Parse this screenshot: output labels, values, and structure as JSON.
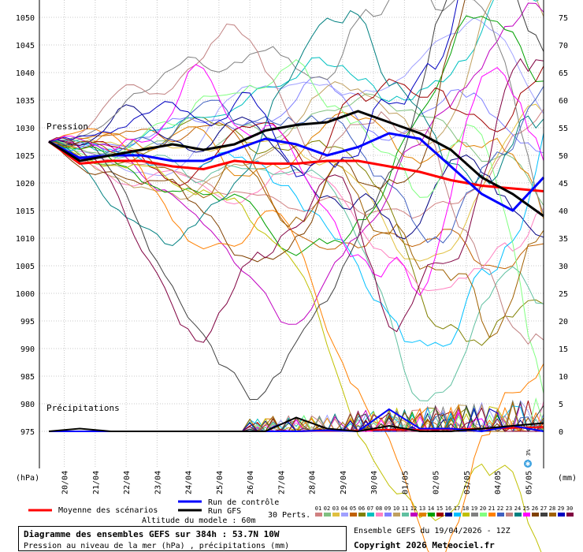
{
  "chart_data": {
    "type": "line",
    "pressure_label": "Pression",
    "precip_label": "Précipitations",
    "left_axis_unit": "(hPa)",
    "right_axis_unit": "(mm)",
    "left_ticks": [
      1050,
      1045,
      1040,
      1035,
      1030,
      1025,
      1020,
      1015,
      1010,
      1005,
      1000,
      995,
      990,
      985,
      980,
      975
    ],
    "right_ticks": [
      75,
      70,
      65,
      60,
      55,
      50,
      45,
      40,
      35,
      30,
      25,
      20,
      15,
      10,
      5,
      0
    ],
    "ylim_pressure": [
      970,
      1052
    ],
    "ylim_precip": [
      -5,
      77
    ],
    "x_dates": [
      "20/04",
      "21/04",
      "22/04",
      "23/04",
      "24/04",
      "25/04",
      "26/04",
      "27/04",
      "28/04",
      "29/04",
      "30/04",
      "01/05",
      "02/05",
      "03/05",
      "04/05",
      "05/05"
    ],
    "x_range_hours": [
      0,
      384
    ],
    "series": [
      {
        "name": "Moyenne des scénarios",
        "color": "#ff0000",
        "hours": [
          0,
          24,
          48,
          72,
          96,
          120,
          144,
          168,
          192,
          216,
          240,
          264,
          288,
          312,
          336,
          360,
          384
        ],
        "pressure": [
          1027.5,
          1023.5,
          1024,
          1024,
          1023,
          1022.5,
          1024,
          1023.5,
          1023.5,
          1024,
          1024,
          1023,
          1022,
          1020.5,
          1019.5,
          1019,
          1018.5
        ],
        "precip": [
          0,
          0,
          0,
          0,
          0,
          0,
          0,
          0,
          0,
          0.1,
          0.2,
          0.3,
          0.3,
          0.4,
          0.5,
          0.6,
          0.8
        ]
      },
      {
        "name": "Run de contrôle",
        "color": "#0000ff",
        "hours": [
          0,
          24,
          48,
          72,
          96,
          120,
          144,
          168,
          192,
          216,
          240,
          264,
          288,
          312,
          336,
          360,
          384
        ],
        "pressure": [
          1027.5,
          1024.5,
          1025,
          1025,
          1024,
          1024,
          1026,
          1028,
          1027,
          1025,
          1026.5,
          1029,
          1028,
          1023,
          1018,
          1015,
          1021
        ],
        "precip": [
          0,
          0,
          0,
          0,
          0,
          0,
          0,
          0,
          0,
          0.2,
          0,
          4,
          0.5,
          0.5,
          0,
          1,
          0
        ]
      },
      {
        "name": "Run GFS",
        "color": "#000000",
        "hours": [
          0,
          24,
          48,
          72,
          96,
          120,
          144,
          168,
          192,
          216,
          240,
          264,
          288,
          312,
          336,
          360,
          384
        ],
        "pressure": [
          1027.5,
          1024,
          1025,
          1026,
          1027,
          1026,
          1027,
          1029.5,
          1030.5,
          1031,
          1033,
          1031,
          1029,
          1026,
          1021,
          1018,
          1014
        ],
        "precip": [
          0,
          0.5,
          0,
          0,
          0,
          0,
          0,
          0,
          2.5,
          0.5,
          0,
          1,
          0,
          0,
          0.5,
          1,
          1.5
        ]
      }
    ],
    "legend": {
      "mean": "Moyenne des scénarios",
      "control": "Run de contrôle",
      "gfs": "Run GFS",
      "perts": "30 Perts.",
      "pert_numbers": [
        "01",
        "02",
        "03",
        "04",
        "05",
        "06",
        "07",
        "08",
        "09",
        "10",
        "11",
        "12",
        "13",
        "14",
        "15",
        "16",
        "17",
        "18",
        "19",
        "20",
        "21",
        "22",
        "23",
        "24",
        "25",
        "26",
        "27",
        "28",
        "29",
        "30"
      ],
      "pert_colors": [
        "#d08080",
        "#80c080",
        "#e0c040",
        "#a0a0ff",
        "#c06000",
        "#808000",
        "#00c0c0",
        "#ff80c0",
        "#8080ff",
        "#c0a060",
        "#60c0a0",
        "#c000c0",
        "#e08000",
        "#00a000",
        "#a00000",
        "#000080",
        "#00c0ff",
        "#c0c000",
        "#808080",
        "#80ff80",
        "#ff8000",
        "#4060c0",
        "#c08080",
        "#008080",
        "#ff00ff",
        "#804000",
        "#404040",
        "#a06000",
        "#0000c0",
        "#800040"
      ]
    },
    "model_altitude": "Altitude du modele : 60m",
    "title": "Diagramme des ensembles GEFS sur 384h : 53.7N 10W",
    "subtitle": "Pression au niveau de la mer (hPa) , précipitations (mm)",
    "run_info": "Ensemble GEFS du 19/04/2026 - 12Z",
    "copyright": "Copyright 2026 Meteociel.fr",
    "snow_marker": {
      "hour": 372,
      "label": "3%"
    }
  }
}
